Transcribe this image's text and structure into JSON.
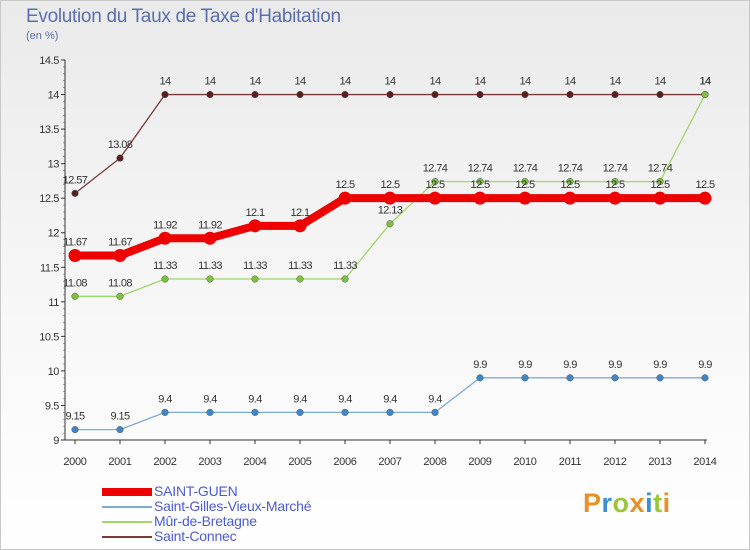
{
  "title": "Evolution du Taux de Taxe d'Habitation",
  "subtitle": "(en %)",
  "brand": {
    "text": "Proxiti",
    "letters": [
      {
        "ch": "P",
        "color": "#e8902a"
      },
      {
        "ch": "r",
        "color": "#3a8fd0"
      },
      {
        "ch": "o",
        "color": "#9bc63a"
      },
      {
        "ch": "x",
        "color": "#e8902a"
      },
      {
        "ch": "i",
        "color": "#3a8fd0"
      },
      {
        "ch": "t",
        "color": "#9bc63a"
      },
      {
        "ch": "i",
        "color": "#e8902a"
      }
    ]
  },
  "chart_data": {
    "type": "line",
    "title": "Evolution du Taux de Taxe d'Habitation",
    "ylabel": "(en %)",
    "x": [
      2000,
      2001,
      2002,
      2003,
      2004,
      2005,
      2006,
      2007,
      2008,
      2009,
      2010,
      2011,
      2012,
      2013,
      2014
    ],
    "ylim": [
      9,
      14.5
    ],
    "yticks": [
      "9",
      "9.5",
      "10",
      "10.5",
      "11",
      "11.5",
      "12",
      "12.5",
      "13",
      "13.5",
      "14",
      "14.5"
    ],
    "ytick_values": [
      9,
      9.5,
      10,
      10.5,
      11,
      11.5,
      12,
      12.5,
      13,
      13.5,
      14,
      14.5
    ],
    "grid": false,
    "legend_position": "bottom-left",
    "series": [
      {
        "name": "Saint-Connec",
        "color": "#7a3a3a",
        "marker_color": "#5a1e1e",
        "values": [
          12.57,
          13.08,
          14,
          14,
          14,
          14,
          14,
          14,
          14,
          14,
          14,
          14,
          14,
          14,
          14
        ],
        "labels": [
          "12.57",
          "13.08",
          "14",
          "14",
          "14",
          "14",
          "14",
          "14",
          "14",
          "14",
          "14",
          "14",
          "14",
          "14",
          "14"
        ]
      },
      {
        "name": "Mûr-de-Bretagne",
        "color": "#9ed86a",
        "marker_color": "#7cc23c",
        "values": [
          11.08,
          11.08,
          11.33,
          11.33,
          11.33,
          11.33,
          11.33,
          12.13,
          12.74,
          12.74,
          12.74,
          12.74,
          12.74,
          12.74,
          14
        ],
        "labels": [
          "11.08",
          "11.08",
          "11.33",
          "11.33",
          "11.33",
          "11.33",
          "11.33",
          "12.13",
          "12.74",
          "12.74",
          "12.74",
          "12.74",
          "12.74",
          "12.74",
          "14"
        ]
      },
      {
        "name": "Saint-Gilles-Vieux-Marché",
        "color": "#7eaad6",
        "marker_color": "#3f86c8",
        "values": [
          9.15,
          9.15,
          9.4,
          9.4,
          9.4,
          9.4,
          9.4,
          9.4,
          9.4,
          9.9,
          9.9,
          9.9,
          9.9,
          9.9,
          9.9
        ],
        "labels": [
          "9.15",
          "9.15",
          "9.4",
          "9.4",
          "9.4",
          "9.4",
          "9.4",
          "9.4",
          "9.4",
          "9.9",
          "9.9",
          "9.9",
          "9.9",
          "9.9",
          "9.9"
        ]
      },
      {
        "name": "SAINT-GUEN",
        "color": "#ee0000",
        "marker_color": "#ee0000",
        "values": [
          11.67,
          11.67,
          11.92,
          11.92,
          12.1,
          12.1,
          12.5,
          12.5,
          12.5,
          12.5,
          12.5,
          12.5,
          12.5,
          12.5,
          12.5
        ],
        "labels": [
          "11.67",
          "11.67",
          "11.92",
          "11.92",
          "12.1",
          "12.1",
          "12.5",
          "12.5",
          "12.5",
          "12.5",
          "12.5",
          "12.5",
          "12.5",
          "12.5",
          "12.5"
        ]
      }
    ]
  },
  "legend": [
    {
      "label": "SAINT-GUEN",
      "color": "#ee0000",
      "thick": true
    },
    {
      "label": "Saint-Gilles-Vieux-Marché",
      "color": "#7eaad6",
      "thick": false
    },
    {
      "label": "Mûr-de-Bretagne",
      "color": "#9ed86a",
      "thick": false
    },
    {
      "label": "Saint-Connec",
      "color": "#7a3a3a",
      "thick": false
    }
  ]
}
